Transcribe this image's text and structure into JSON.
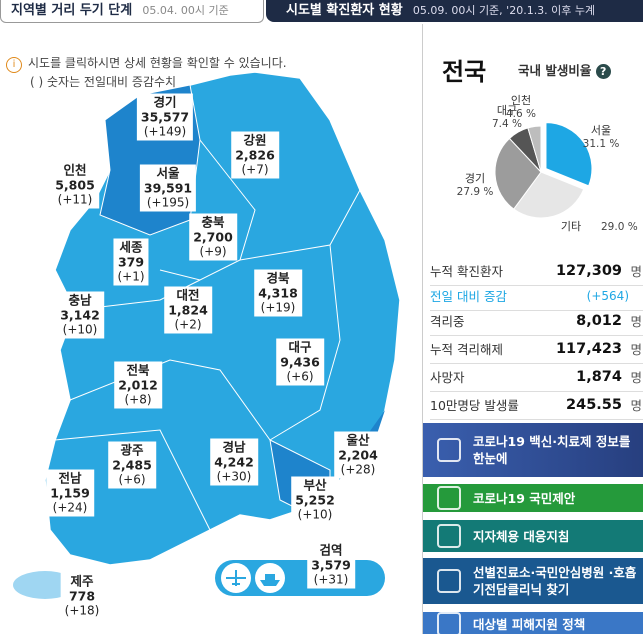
{
  "tabs": {
    "left": {
      "title": "지역별 거리 두기 단계",
      "date": "05.04. 00시 기준"
    },
    "right": {
      "title": "시도별 확진환자 현황",
      "date": "05.09. 00시 기준, '20.1.3. 이후 누계"
    }
  },
  "notice": [
    "시도를 클릭하시면 상세 현황을 확인할 수 있습니다.",
    "( ) 숫자는 전일대비 증감수치"
  ],
  "regions": [
    {
      "name": "경기",
      "total": "35,577",
      "change": "(+149)"
    },
    {
      "name": "인천",
      "total": "5,805",
      "change": "(+11)"
    },
    {
      "name": "서울",
      "total": "39,591",
      "change": "(+195)"
    },
    {
      "name": "강원",
      "total": "2,826",
      "change": "(+7)"
    },
    {
      "name": "충북",
      "total": "2,700",
      "change": "(+9)"
    },
    {
      "name": "세종",
      "total": "379",
      "change": "(+1)"
    },
    {
      "name": "충남",
      "total": "3,142",
      "change": "(+10)"
    },
    {
      "name": "대전",
      "total": "1,824",
      "change": "(+2)"
    },
    {
      "name": "경북",
      "total": "4,318",
      "change": "(+19)"
    },
    {
      "name": "대구",
      "total": "9,436",
      "change": "(+6)"
    },
    {
      "name": "전북",
      "total": "2,012",
      "change": "(+8)"
    },
    {
      "name": "경남",
      "total": "4,242",
      "change": "(+30)"
    },
    {
      "name": "울산",
      "total": "2,204",
      "change": "(+28)"
    },
    {
      "name": "광주",
      "total": "2,485",
      "change": "(+6)"
    },
    {
      "name": "부산",
      "total": "5,252",
      "change": "(+10)"
    },
    {
      "name": "전남",
      "total": "1,159",
      "change": "(+24)"
    },
    {
      "name": "검역",
      "total": "3,579",
      "change": "(+31)"
    },
    {
      "name": "제주",
      "total": "778",
      "change": "(+18)"
    }
  ],
  "panel": {
    "title": "전국",
    "ratio_title": "국내 발생비율",
    "pie": [
      {
        "name": "서울",
        "value": 31.1,
        "label": "31.1 %",
        "color": "#1ea7e4"
      },
      {
        "name": "기타",
        "value": 29.0,
        "label": "29.0 %",
        "color": "#e6e6e6"
      },
      {
        "name": "경기",
        "value": 27.9,
        "label": "27.9 %",
        "color": "#9c9c9c"
      },
      {
        "name": "대구",
        "value": 7.4,
        "label": "7.4 %",
        "color": "#555555"
      },
      {
        "name": "인천",
        "value": 4.6,
        "label": "4.6 %",
        "color": "#bdbdbd"
      }
    ],
    "stats": [
      {
        "label": "누적 확진환자",
        "value": "127,309",
        "unit": "명"
      },
      {
        "label": "전일 대비 증감",
        "value": "(+564)"
      },
      {
        "label": "격리중",
        "value": "8,012",
        "unit": "명"
      },
      {
        "label": "누적 격리해제",
        "value": "117,423",
        "unit": "명"
      },
      {
        "label": "사망자",
        "value": "1,874",
        "unit": "명"
      },
      {
        "label": "10만명당 발생률",
        "value": "245.55",
        "unit": "명"
      }
    ]
  },
  "buttons": [
    "코로나19 백신·치료제 정보를 한눈에",
    "코로나19 국민제안",
    "지자체용 대응지침",
    "선별진료소·국민안심병원 ·호흡기전담클리닉 찾기",
    "대상별 피해지원 정책"
  ]
}
